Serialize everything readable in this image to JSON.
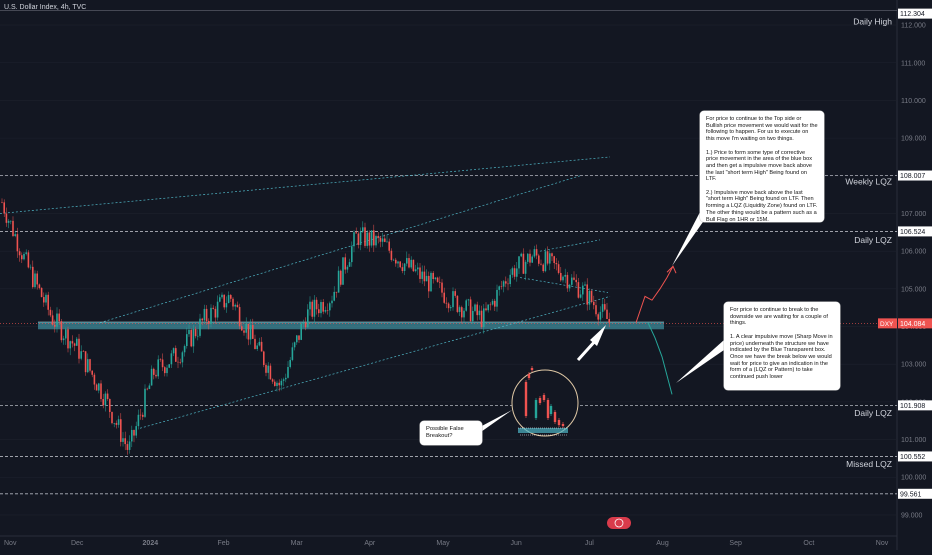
{
  "header": {
    "symbol": "U.S. Dollar Index, 4h, TVC"
  },
  "chart_data": {
    "type": "candlestick",
    "ylim": [
      98.6,
      112.4
    ],
    "y_ticks": [
      "112.000",
      "111.000",
      "110.000",
      "109.000",
      "108.000",
      "107.000",
      "106.000",
      "105.000",
      "104.000",
      "103.000",
      "102.000",
      "101.000",
      "100.000",
      "99.000"
    ],
    "x_ticks": [
      "Nov",
      "Dec",
      "2024",
      "Feb",
      "Mar",
      "Apr",
      "May",
      "Jun",
      "Jul",
      "Aug",
      "Sep",
      "Oct",
      "Nov"
    ],
    "price_labels": [
      {
        "value": "112.304",
        "y": 112.304
      },
      {
        "value": "108.007",
        "y": 108.007
      },
      {
        "value": "106.524",
        "y": 106.524
      },
      {
        "value": "101.908",
        "y": 101.908
      },
      {
        "value": "100.552",
        "y": 100.552
      },
      {
        "value": "99.561",
        "y": 99.561
      }
    ],
    "current_price": {
      "symbol": "DXY",
      "value": "104.084",
      "y": 104.084
    },
    "level_labels": [
      {
        "text": "Daily High",
        "y": 112.1
      },
      {
        "text": "Weekly LQZ",
        "y": 107.85
      },
      {
        "text": "Daily LQZ",
        "y": 106.3
      },
      {
        "text": "Daily LQZ",
        "y": 101.7
      },
      {
        "text": "Missed LQZ",
        "y": 100.35
      }
    ],
    "dashed_levels": [
      108.007,
      106.524,
      101.908,
      100.552,
      99.561
    ],
    "price_path": [
      [
        "Nov",
        107.3
      ],
      [
        "Nov",
        105.6
      ],
      [
        "Dec",
        104.2
      ],
      [
        "Dec",
        103.4
      ],
      [
        "Dec",
        102.2
      ],
      [
        "Dec",
        100.7
      ],
      [
        "2024",
        102.8
      ],
      [
        "2024",
        103.3
      ],
      [
        "Feb",
        104.2
      ],
      [
        "Feb",
        104.8
      ],
      [
        "Mar",
        103.5
      ],
      [
        "Mar",
        102.4
      ],
      [
        "Mar",
        104.3
      ],
      [
        "Apr",
        104.8
      ],
      [
        "Apr",
        106.4
      ],
      [
        "Apr",
        106.2
      ],
      [
        "May",
        105.6
      ],
      [
        "May",
        105.1
      ],
      [
        "Jun",
        104.6
      ],
      [
        "Jun",
        104.2
      ],
      [
        "Jun",
        105.4
      ],
      [
        "Jun",
        105.9
      ],
      [
        "Jul",
        105.5
      ],
      [
        "Jul",
        104.9
      ],
      [
        "Jul",
        104.1
      ]
    ],
    "projection_bull": [
      104.1,
      104.8,
      104.7,
      105.0,
      105.3,
      105.6
    ],
    "projection_bear": [
      104.1,
      103.7,
      103.2,
      102.2
    ]
  },
  "annotations": {
    "bull_note": "For price to continue to the Top side or Bullish price movement we would wait for the following to happen. For us to execute on this move I'm waiting on two things.\n\n1.) Price to form some type of corrective price movement in the area of the blue box and then get a impulsive move back above the last \"short term High\" Being found on LTF.\n\n2.) Impulsive move back above the last \"short term High\" Being found on LTF. Then forming a LQZ (Liquidity Zone) found on LTF. The other thing would be a pattern such as a Bull Flag on 1HR or 15M.",
    "bear_note": "For price to continue to break to the downside we are waiting for a couple of things.\n\n1. A clear impulsive move (Sharp Move in price) underneath the structure we have indicated by the Blue Transparent box. Once we have the break below we would wait for price to give an indication in the form of a (LQZ or Pattern) to take continued push lower",
    "false_breakout": "Possible False Breakout?"
  },
  "colors": {
    "background": "#131722",
    "up": "#26a69a",
    "down": "#ef5350",
    "zone": "#4fb6c6",
    "grid": "#1e222d",
    "level": "#b2b5be"
  }
}
